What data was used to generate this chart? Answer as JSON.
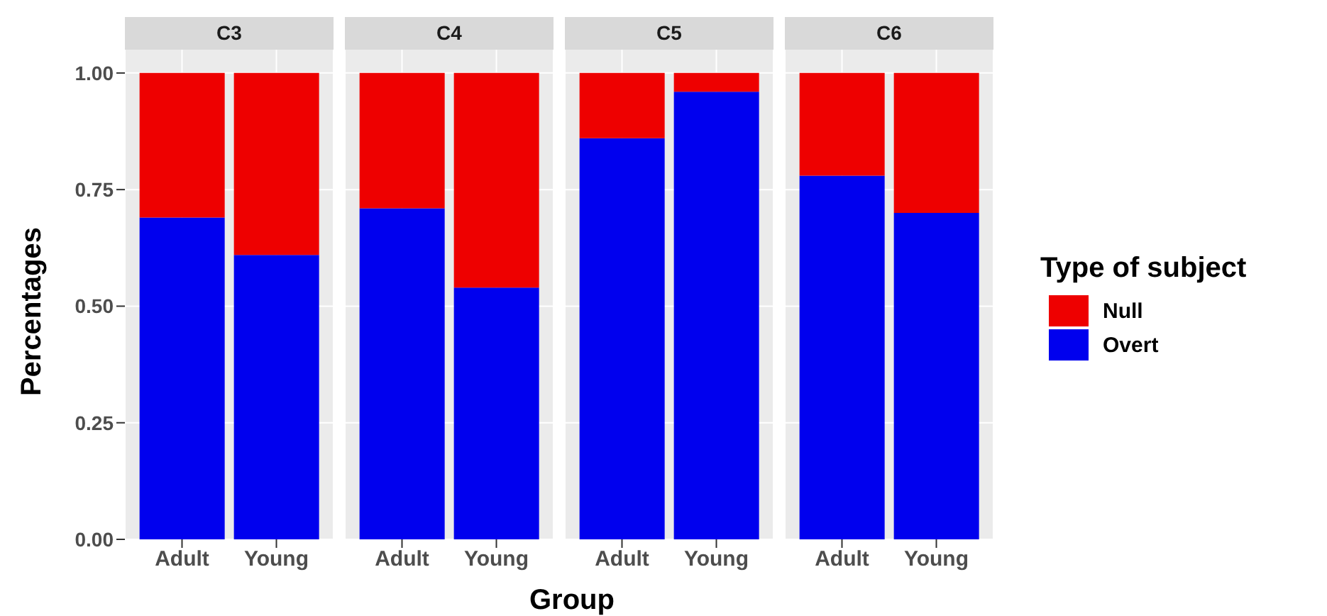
{
  "chart_data": [
    {
      "type": "bar",
      "title": "C3",
      "ylabel": "Percentages",
      "categories": [
        "Adult",
        "Young"
      ],
      "stacked": true,
      "grid": true,
      "legend": "right",
      "legend_title": "Type of subject",
      "ylim": [
        0,
        1.05
      ],
      "yticks": [
        {
          "value": 0,
          "label": "0.00"
        },
        {
          "value": 0.25,
          "label": "0.25"
        },
        {
          "value": 0.5,
          "label": "0.50"
        },
        {
          "value": 0.75,
          "label": "0.75"
        },
        {
          "value": 1,
          "label": "1.00"
        }
      ],
      "series": [
        {
          "name": "Overt",
          "color": "#0000ee",
          "values": [
            0.69,
            0.61
          ]
        },
        {
          "name": "Null",
          "color": "#ee0000",
          "values": [
            0.31,
            0.39
          ]
        }
      ]
    },
    {
      "type": "bar",
      "title": "C4",
      "xlabel": "Group",
      "categories": [
        "Adult",
        "Young"
      ],
      "stacked": true,
      "grid": true,
      "tick_labels": "x",
      "ylim": [
        0,
        1.05
      ],
      "yticks": [
        0,
        0.25,
        0.5,
        0.75,
        1
      ],
      "series": [
        {
          "color": "#0000ee",
          "values": [
            0.71,
            0.54
          ]
        },
        {
          "color": "#ee0000",
          "values": [
            0.29,
            0.46
          ]
        }
      ]
    },
    {
      "type": "bar",
      "title": "C5",
      "categories": [
        "Adult",
        "Young"
      ],
      "stacked": true,
      "grid": true,
      "tick_labels": "x",
      "ylim": [
        0,
        1.05
      ],
      "yticks": [
        0,
        0.25,
        0.5,
        0.75,
        1
      ],
      "series": [
        {
          "color": "#0000ee",
          "values": [
            0.86,
            0.96
          ]
        },
        {
          "color": "#ee0000",
          "values": [
            0.14,
            0.04
          ]
        }
      ]
    },
    {
      "type": "bar",
      "title": "C6",
      "categories": [
        "Adult",
        "Young"
      ],
      "stacked": true,
      "grid": true,
      "tick_labels": "x",
      "ylim": [
        0,
        1.05
      ],
      "yticks": [
        0,
        0.25,
        0.5,
        0.75,
        1
      ],
      "series": [
        {
          "color": "#0000ee",
          "values": [
            0.78,
            0.7
          ]
        },
        {
          "color": "#ee0000",
          "values": [
            0.22,
            0.3
          ]
        }
      ]
    }
  ]
}
